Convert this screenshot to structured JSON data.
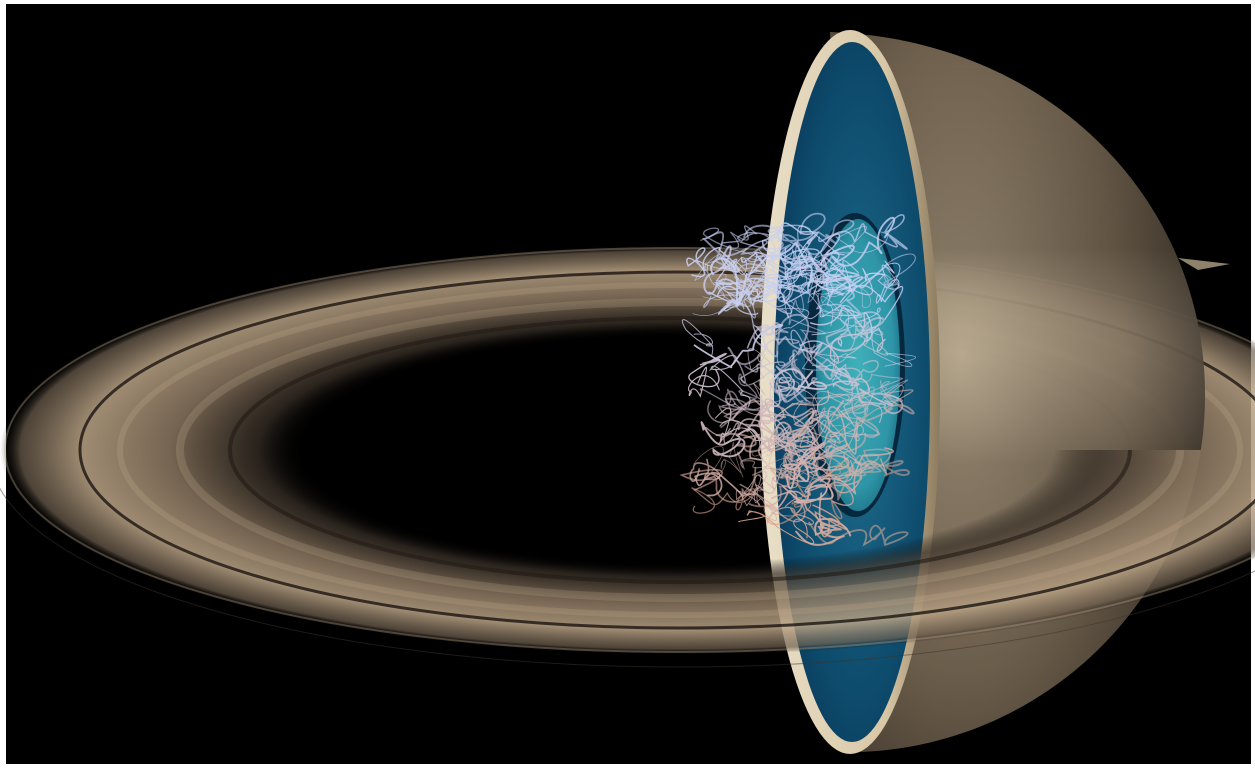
{
  "scene": {
    "subject": "planet-cutaway-with-rings",
    "colors": {
      "space": "#000000",
      "frame": "#ffffff",
      "ring_light": "#bba486",
      "ring_mid": "#8a7660",
      "ring_dark": "#3a3128",
      "shell_light": "#b9a88c",
      "shell_dark": "#1f1a15",
      "cut_rim": "#e9dfc8",
      "interior_deep": "#0a3a5c",
      "interior_mid": "#1f6e8f",
      "interior_core": "#2e95a7",
      "field_cool": "#c8d0f2",
      "field_warm": "#d99a7c"
    },
    "icons": [
      "saturn-shell",
      "cut-face",
      "inner-core",
      "ring-system",
      "magnetic-field-lines"
    ]
  }
}
